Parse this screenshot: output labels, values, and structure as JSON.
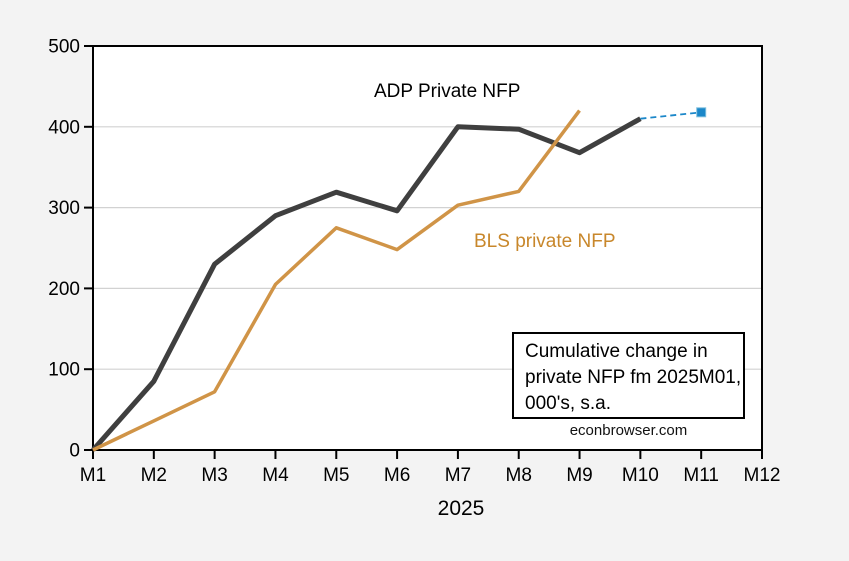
{
  "canvas": {
    "bg": "#f3f3f3",
    "plot_bg": "#ffffff",
    "border_color": "#000000",
    "grid_color": "#d2d2d2",
    "tick_color": "#000000",
    "tick_label_color": "#000000"
  },
  "chart_data": {
    "type": "line",
    "title": "",
    "xlabel": "2025",
    "ylabel": "",
    "x_categories": [
      "M1",
      "M2",
      "M3",
      "M4",
      "M5",
      "M6",
      "M7",
      "M8",
      "M9",
      "M10",
      "M11",
      "M12"
    ],
    "ylim": [
      0,
      500
    ],
    "yticks": [
      0,
      100,
      200,
      300,
      400,
      500
    ],
    "grid": true,
    "legend_position": "none (direct series text labels on plot)",
    "series": [
      {
        "name": "ADP Private NFP",
        "color": "#3f3f3f",
        "stroke_width": 5,
        "line_style": "solid",
        "values": [
          0,
          85,
          230,
          290,
          319,
          296,
          400,
          397,
          368,
          410,
          null,
          null
        ]
      },
      {
        "name": "BLS private NFP",
        "color": "#d09447",
        "stroke_width": 3.5,
        "line_style": "solid",
        "values": [
          0,
          36,
          72,
          205,
          275,
          248,
          303,
          320,
          420,
          null,
          null,
          null
        ]
      },
      {
        "name": "ADP implied extension",
        "color": "#1b87c9",
        "stroke_width": 1.8,
        "line_style": "dashed",
        "end_marker": "square",
        "marker_size": 9,
        "values": [
          null,
          null,
          null,
          null,
          null,
          null,
          null,
          null,
          null,
          410,
          418,
          null
        ]
      }
    ],
    "annotations": {
      "adp_label": "ADP Private NFP",
      "bls_label": "BLS private NFP",
      "note_lines": [
        "Cumulative change in",
        "private NFP fm 2025M01,",
        "000's, s.a."
      ],
      "watermark": "econbrowser.com"
    }
  }
}
